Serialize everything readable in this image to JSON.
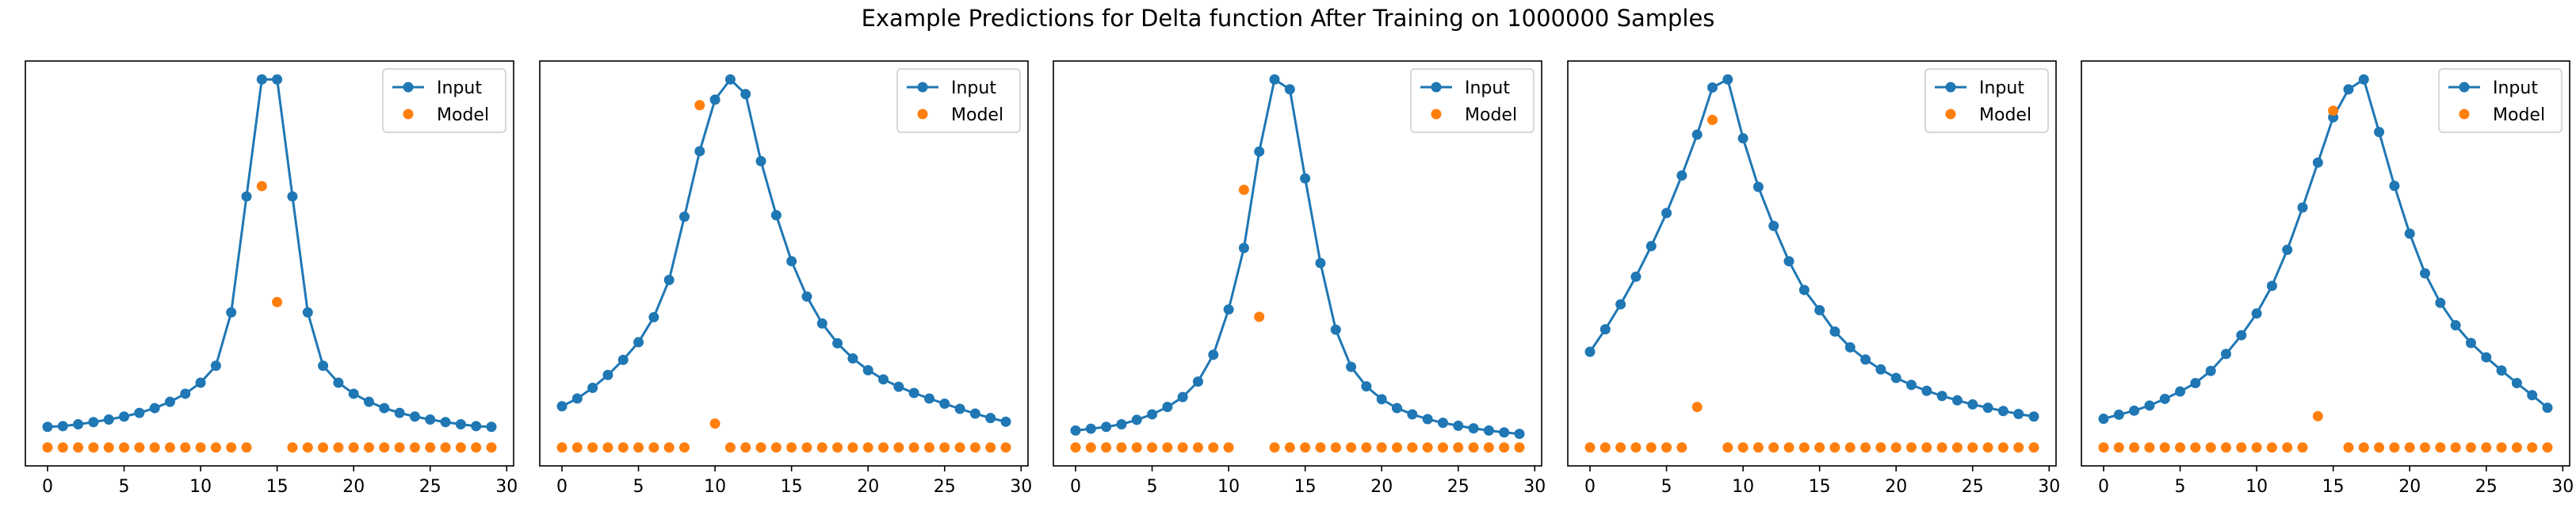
{
  "title": "Example Predictions for Delta function After Training on 1000000 Samples",
  "colors": {
    "input": "#1f77b4",
    "model": "#ff7f0e",
    "axis": "#000000",
    "legend_border": "#cccccc"
  },
  "chart_data": [
    {
      "type": "line",
      "x_ticks": [
        0,
        5,
        10,
        15,
        20,
        25,
        30
      ],
      "xlim": [
        -1.45,
        30.45
      ],
      "ylim": [
        -0.05,
        1.05
      ],
      "legend_position": "top-right",
      "grid": false,
      "legend": [
        "Input",
        "Model"
      ],
      "series": [
        {
          "name": "Input",
          "style": "line-with-markers",
          "values": [
            0.056,
            0.058,
            0.063,
            0.069,
            0.076,
            0.084,
            0.094,
            0.107,
            0.124,
            0.146,
            0.176,
            0.222,
            0.367,
            0.682,
            1.0,
            1.0,
            0.682,
            0.367,
            0.222,
            0.176,
            0.146,
            0.124,
            0.107,
            0.094,
            0.084,
            0.076,
            0.069,
            0.063,
            0.058,
            0.056
          ]
        },
        {
          "name": "Model",
          "style": "markers",
          "values": [
            0,
            0,
            0,
            0,
            0,
            0,
            0,
            0,
            0,
            0,
            0,
            0,
            0,
            0,
            0.71,
            0.395,
            0,
            0,
            0,
            0,
            0,
            0,
            0,
            0,
            0,
            0,
            0,
            0,
            0,
            0
          ]
        }
      ]
    },
    {
      "type": "line",
      "x_ticks": [
        0,
        5,
        10,
        15,
        20,
        25,
        30
      ],
      "xlim": [
        -1.45,
        30.45
      ],
      "ylim": [
        -0.05,
        1.05
      ],
      "legend_position": "top-right",
      "grid": false,
      "legend": [
        "Input",
        "Model"
      ],
      "series": [
        {
          "name": "Input",
          "style": "line-with-markers",
          "values": [
            0.112,
            0.133,
            0.162,
            0.197,
            0.238,
            0.286,
            0.354,
            0.455,
            0.627,
            0.805,
            0.945,
            1.0,
            0.96,
            0.778,
            0.631,
            0.506,
            0.41,
            0.337,
            0.283,
            0.242,
            0.21,
            0.185,
            0.165,
            0.148,
            0.133,
            0.119,
            0.105,
            0.092,
            0.08,
            0.07
          ]
        },
        {
          "name": "Model",
          "style": "markers",
          "values": [
            0,
            0,
            0,
            0,
            0,
            0,
            0,
            0,
            0,
            0.93,
            0.065,
            0,
            0,
            0,
            0,
            0,
            0,
            0,
            0,
            0,
            0,
            0,
            0,
            0,
            0,
            0,
            0,
            0,
            0,
            0
          ]
        }
      ]
    },
    {
      "type": "line",
      "x_ticks": [
        0,
        5,
        10,
        15,
        20,
        25,
        30
      ],
      "xlim": [
        -1.45,
        30.45
      ],
      "ylim": [
        -0.05,
        1.05
      ],
      "legend_position": "top-right",
      "grid": false,
      "legend": [
        "Input",
        "Model"
      ],
      "series": [
        {
          "name": "Input",
          "style": "line-with-markers",
          "values": [
            0.046,
            0.051,
            0.056,
            0.063,
            0.075,
            0.09,
            0.11,
            0.137,
            0.179,
            0.252,
            0.375,
            0.542,
            0.804,
            1.0,
            0.973,
            0.731,
            0.501,
            0.32,
            0.219,
            0.166,
            0.131,
            0.107,
            0.09,
            0.077,
            0.067,
            0.059,
            0.052,
            0.046,
            0.041,
            0.037
          ]
        },
        {
          "name": "Model",
          "style": "markers",
          "values": [
            0,
            0,
            0,
            0,
            0,
            0,
            0,
            0,
            0,
            0,
            0,
            0.7,
            0.355,
            0,
            0,
            0,
            0,
            0,
            0,
            0,
            0,
            0,
            0,
            0,
            0,
            0,
            0,
            0,
            0,
            0
          ]
        }
      ]
    },
    {
      "type": "line",
      "x_ticks": [
        0,
        5,
        10,
        15,
        20,
        25,
        30
      ],
      "xlim": [
        -1.45,
        30.45
      ],
      "ylim": [
        -0.05,
        1.05
      ],
      "legend_position": "top-right",
      "grid": false,
      "legend": [
        "Input",
        "Model"
      ],
      "series": [
        {
          "name": "Input",
          "style": "line-with-markers",
          "values": [
            0.26,
            0.321,
            0.389,
            0.464,
            0.547,
            0.637,
            0.739,
            0.85,
            0.978,
            1.0,
            0.84,
            0.708,
            0.602,
            0.506,
            0.428,
            0.373,
            0.315,
            0.272,
            0.239,
            0.212,
            0.189,
            0.17,
            0.154,
            0.14,
            0.128,
            0.117,
            0.108,
            0.099,
            0.091,
            0.084
          ]
        },
        {
          "name": "Model",
          "style": "markers",
          "values": [
            0,
            0,
            0,
            0,
            0,
            0,
            0,
            0.11,
            0.89,
            0,
            0,
            0,
            0,
            0,
            0,
            0,
            0,
            0,
            0,
            0,
            0,
            0,
            0,
            0,
            0,
            0,
            0,
            0,
            0,
            0
          ]
        }
      ]
    },
    {
      "type": "line",
      "x_ticks": [
        0,
        5,
        10,
        15,
        20,
        25,
        30
      ],
      "xlim": [
        -1.45,
        30.45
      ],
      "ylim": [
        -0.05,
        1.05
      ],
      "legend_position": "top-right",
      "grid": false,
      "legend": [
        "Input",
        "Model"
      ],
      "series": [
        {
          "name": "Input",
          "style": "line-with-markers",
          "values": [
            0.078,
            0.089,
            0.1,
            0.114,
            0.132,
            0.152,
            0.175,
            0.208,
            0.254,
            0.305,
            0.364,
            0.439,
            0.537,
            0.652,
            0.774,
            0.897,
            0.973,
            1.0,
            0.857,
            0.711,
            0.581,
            0.473,
            0.393,
            0.332,
            0.284,
            0.245,
            0.209,
            0.175,
            0.142,
            0.108
          ]
        },
        {
          "name": "Model",
          "style": "markers",
          "values": [
            0,
            0,
            0,
            0,
            0,
            0,
            0,
            0,
            0,
            0,
            0,
            0,
            0,
            0,
            0.085,
            0.915,
            0,
            0,
            0,
            0,
            0,
            0,
            0,
            0,
            0,
            0,
            0,
            0,
            0,
            0
          ]
        }
      ]
    }
  ]
}
